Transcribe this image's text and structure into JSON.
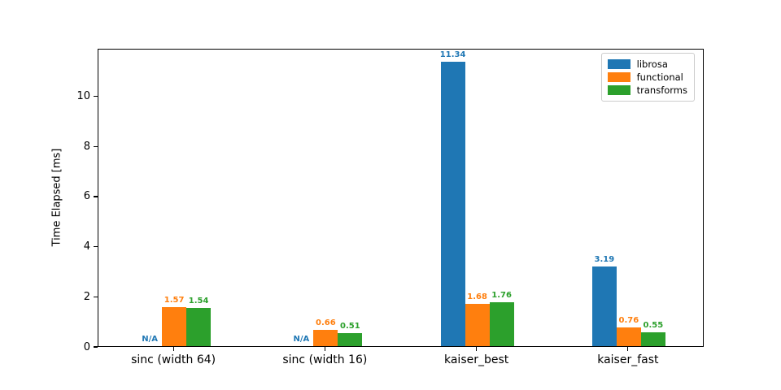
{
  "chart_data": {
    "type": "bar",
    "title": "",
    "xlabel": "",
    "ylabel": "Time Elapsed [ms]",
    "categories": [
      "sinc (width 64)",
      "sinc (width 16)",
      "kaiser_best",
      "kaiser_fast"
    ],
    "series": [
      {
        "name": "librosa",
        "color": "#1f77b4",
        "values": [
          null,
          null,
          11.34,
          3.19
        ],
        "labels": [
          "N/A",
          "N/A",
          "11.34",
          "3.19"
        ]
      },
      {
        "name": "functional",
        "color": "#ff7f0e",
        "values": [
          1.57,
          0.66,
          1.68,
          0.76
        ],
        "labels": [
          "1.57",
          "0.66",
          "1.68",
          "0.76"
        ]
      },
      {
        "name": "transforms",
        "color": "#2ca02c",
        "values": [
          1.54,
          0.51,
          1.76,
          0.55
        ],
        "labels": [
          "1.54",
          "0.51",
          "1.76",
          "0.55"
        ]
      }
    ],
    "y_ticks": [
      0,
      2,
      4,
      6,
      8,
      10
    ],
    "ylim": [
      0,
      11.9
    ],
    "grid": false,
    "legend_position": "upper right",
    "na_label": "N/A"
  },
  "style": {
    "background": "#ffffff",
    "spine_color": "#000000"
  }
}
